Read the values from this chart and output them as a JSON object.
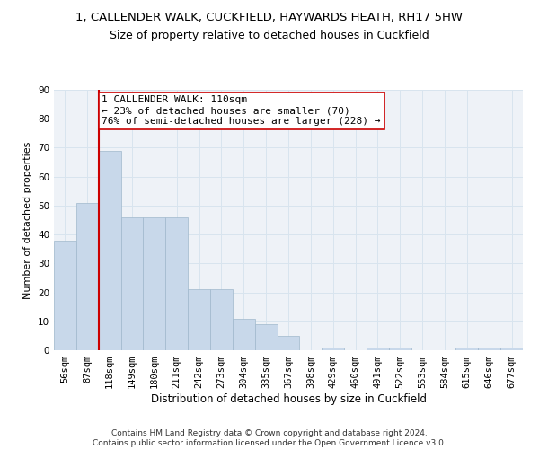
{
  "title1": "1, CALLENDER WALK, CUCKFIELD, HAYWARDS HEATH, RH17 5HW",
  "title2": "Size of property relative to detached houses in Cuckfield",
  "xlabel": "Distribution of detached houses by size in Cuckfield",
  "ylabel": "Number of detached properties",
  "footer1": "Contains HM Land Registry data © Crown copyright and database right 2024.",
  "footer2": "Contains public sector information licensed under the Open Government Licence v3.0.",
  "bin_labels": [
    "56sqm",
    "87sqm",
    "118sqm",
    "149sqm",
    "180sqm",
    "211sqm",
    "242sqm",
    "273sqm",
    "304sqm",
    "335sqm",
    "367sqm",
    "398sqm",
    "429sqm",
    "460sqm",
    "491sqm",
    "522sqm",
    "553sqm",
    "584sqm",
    "615sqm",
    "646sqm",
    "677sqm"
  ],
  "bar_values": [
    38,
    51,
    69,
    46,
    46,
    46,
    21,
    21,
    11,
    9,
    5,
    0,
    1,
    0,
    1,
    1,
    0,
    0,
    1,
    1,
    1
  ],
  "bar_color": "#c8d8ea",
  "bar_edgecolor": "#a0b8cc",
  "grid_color": "#d8e4ee",
  "background_color": "#eef2f7",
  "vline_x": 1.5,
  "vline_color": "#cc0000",
  "annotation_text": "1 CALLENDER WALK: 110sqm\n← 23% of detached houses are smaller (70)\n76% of semi-detached houses are larger (228) →",
  "annotation_box_edgecolor": "#cc0000",
  "ylim": [
    0,
    90
  ],
  "yticks": [
    0,
    10,
    20,
    30,
    40,
    50,
    60,
    70,
    80,
    90
  ],
  "title1_fontsize": 9.5,
  "title2_fontsize": 9,
  "xlabel_fontsize": 8.5,
  "ylabel_fontsize": 8,
  "tick_fontsize": 7.5,
  "annotation_fontsize": 8,
  "footer_fontsize": 6.5
}
